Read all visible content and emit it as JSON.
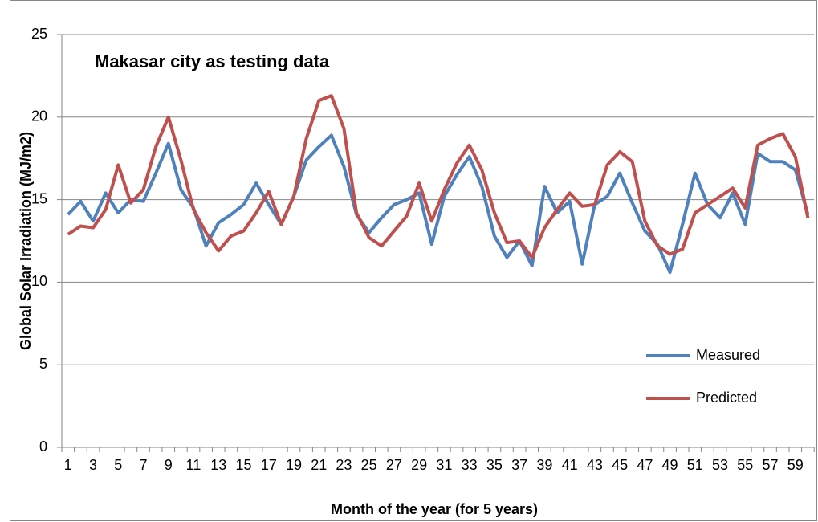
{
  "chart_data": {
    "type": "line",
    "title": "Makasar city as testing data",
    "x_label": "Month of the year (for 5 years)",
    "y_label": "Global Solar Irradiation (MJ/m2)",
    "categories": [
      1,
      null,
      3,
      null,
      5,
      null,
      7,
      null,
      9,
      null,
      11,
      null,
      13,
      null,
      15,
      null,
      17,
      null,
      19,
      null,
      21,
      null,
      23,
      null,
      25,
      null,
      27,
      null,
      29,
      null,
      31,
      null,
      33,
      null,
      35,
      null,
      37,
      null,
      39,
      null,
      41,
      null,
      43,
      null,
      45,
      null,
      47,
      null,
      49,
      null,
      51,
      null,
      53,
      null,
      55,
      null,
      57,
      null,
      59,
      null
    ],
    "series": [
      {
        "name": "Measured",
        "color": "#4f81bd",
        "values": [
          14.1,
          14.9,
          13.7,
          15.4,
          14.2,
          15.0,
          14.9,
          16.6,
          18.4,
          15.6,
          14.5,
          12.2,
          13.6,
          14.1,
          14.7,
          16.0,
          14.7,
          13.5,
          15.2,
          17.4,
          18.2,
          18.9,
          17.0,
          14.1,
          13.0,
          13.9,
          14.7,
          15.0,
          15.4,
          12.3,
          15.2,
          16.5,
          17.6,
          15.8,
          12.8,
          11.5,
          12.5,
          11.0,
          15.8,
          14.2,
          14.9,
          11.1,
          14.7,
          15.2,
          16.6,
          14.8,
          13.1,
          12.3,
          10.6,
          13.5,
          16.6,
          14.7,
          13.9,
          15.4,
          13.5,
          17.8,
          17.3,
          17.3,
          16.8,
          14.1
        ]
      },
      {
        "name": "Predicted",
        "color": "#c0504d",
        "values": [
          12.9,
          13.4,
          13.3,
          14.4,
          17.1,
          14.8,
          15.6,
          18.2,
          20.0,
          17.4,
          14.4,
          13.0,
          11.9,
          12.8,
          13.1,
          14.2,
          15.5,
          13.5,
          15.2,
          18.7,
          21.0,
          21.3,
          19.3,
          14.2,
          12.7,
          12.2,
          13.1,
          14.0,
          16.0,
          13.7,
          15.6,
          17.2,
          18.3,
          16.8,
          14.2,
          12.4,
          12.5,
          11.5,
          13.3,
          14.4,
          15.4,
          14.6,
          14.7,
          17.1,
          17.9,
          17.3,
          13.7,
          12.2,
          11.7,
          12.0,
          14.2,
          14.7,
          15.2,
          15.7,
          14.5,
          18.3,
          18.7,
          19.0,
          17.6,
          13.9
        ]
      }
    ],
    "ylim": [
      0,
      25
    ],
    "yticks": [
      0,
      5,
      10,
      15,
      20,
      25
    ],
    "grid": true,
    "legend": "right"
  }
}
